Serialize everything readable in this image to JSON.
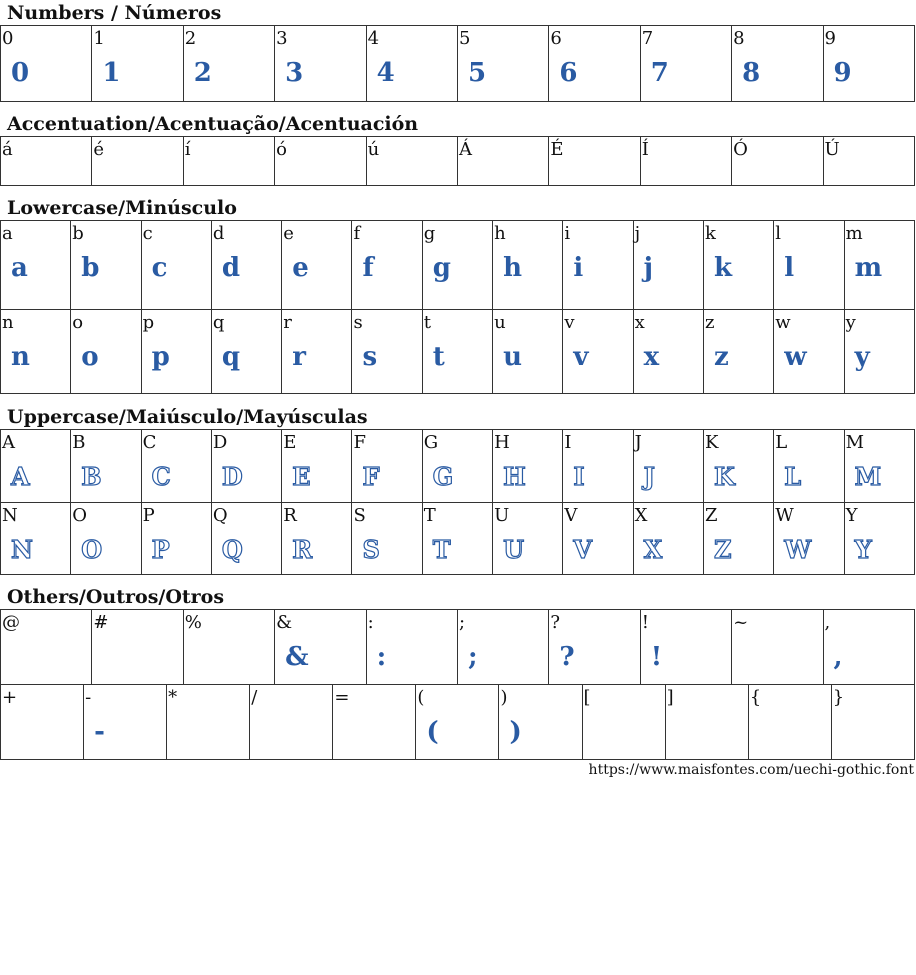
{
  "sections": [
    {
      "id": "numbers",
      "title": "Numbers / Números",
      "rows": [
        {
          "chars": [
            "0",
            "1",
            "2",
            "3",
            "4",
            "5",
            "6",
            "7",
            "8",
            "9"
          ],
          "samples": [
            "0",
            "1",
            "2",
            "3",
            "4",
            "5",
            "6",
            "7",
            "8",
            "9"
          ]
        }
      ]
    },
    {
      "id": "accentuation",
      "title": "Accentuation/Acentuação/Acentuación",
      "rows": [
        {
          "chars": [
            "á",
            "é",
            "í",
            "ó",
            "ú",
            "Á",
            "É",
            "Í",
            "Ó",
            "Ú"
          ],
          "samples": [
            "",
            "",
            "",
            "",
            "",
            "",
            "",
            "",
            "",
            ""
          ]
        }
      ]
    },
    {
      "id": "lowercase",
      "title": "Lowercase/Minúsculo",
      "rows": [
        {
          "chars": [
            "a",
            "b",
            "c",
            "d",
            "e",
            "f",
            "g",
            "h",
            "i",
            "j",
            "k",
            "l",
            "m"
          ],
          "samples": [
            "a",
            "b",
            "c",
            "d",
            "e",
            "f",
            "g",
            "h",
            "i",
            "j",
            "k",
            "l",
            "m"
          ]
        },
        {
          "chars": [
            "n",
            "o",
            "p",
            "q",
            "r",
            "s",
            "t",
            "u",
            "v",
            "x",
            "z",
            "w",
            "y"
          ],
          "samples": [
            "n",
            "o",
            "p",
            "q",
            "r",
            "s",
            "t",
            "u",
            "v",
            "x",
            "z",
            "w",
            "y"
          ]
        }
      ]
    },
    {
      "id": "uppercase",
      "title": "Uppercase/Maiúsculo/Mayúsculas",
      "rows": [
        {
          "chars": [
            "A",
            "B",
            "C",
            "D",
            "E",
            "F",
            "G",
            "H",
            "I",
            "J",
            "K",
            "L",
            "M"
          ],
          "samples": [
            "A",
            "B",
            "C",
            "D",
            "E",
            "F",
            "G",
            "H",
            "I",
            "J",
            "K",
            "L",
            "M"
          ]
        },
        {
          "chars": [
            "N",
            "O",
            "P",
            "Q",
            "R",
            "S",
            "T",
            "U",
            "V",
            "X",
            "Z",
            "W",
            "Y"
          ],
          "samples": [
            "N",
            "O",
            "P",
            "Q",
            "R",
            "S",
            "T",
            "U",
            "V",
            "X",
            "Z",
            "W",
            "Y"
          ]
        }
      ]
    },
    {
      "id": "others",
      "title": "Others/Outros/Otros",
      "rows": [
        {
          "chars": [
            "@",
            "#",
            "%",
            "&",
            ":",
            ";",
            "?",
            "!",
            "~",
            ","
          ],
          "samples": [
            "",
            "",
            "",
            "&",
            ":",
            ";",
            "?",
            "!",
            "",
            ","
          ]
        },
        {
          "chars": [
            "+",
            "-",
            "*",
            "/",
            "=",
            "(",
            ")",
            "[",
            "]",
            "{",
            "}"
          ],
          "samples": [
            "",
            "-",
            "",
            "",
            "",
            "(",
            ")",
            "",
            "",
            "",
            ""
          ]
        }
      ]
    }
  ],
  "footer": {
    "url": "https://www.maisfontes.com/uechi-gothic.font"
  },
  "colors": {
    "glyph": "#2a5ba3",
    "border": "#333333"
  }
}
